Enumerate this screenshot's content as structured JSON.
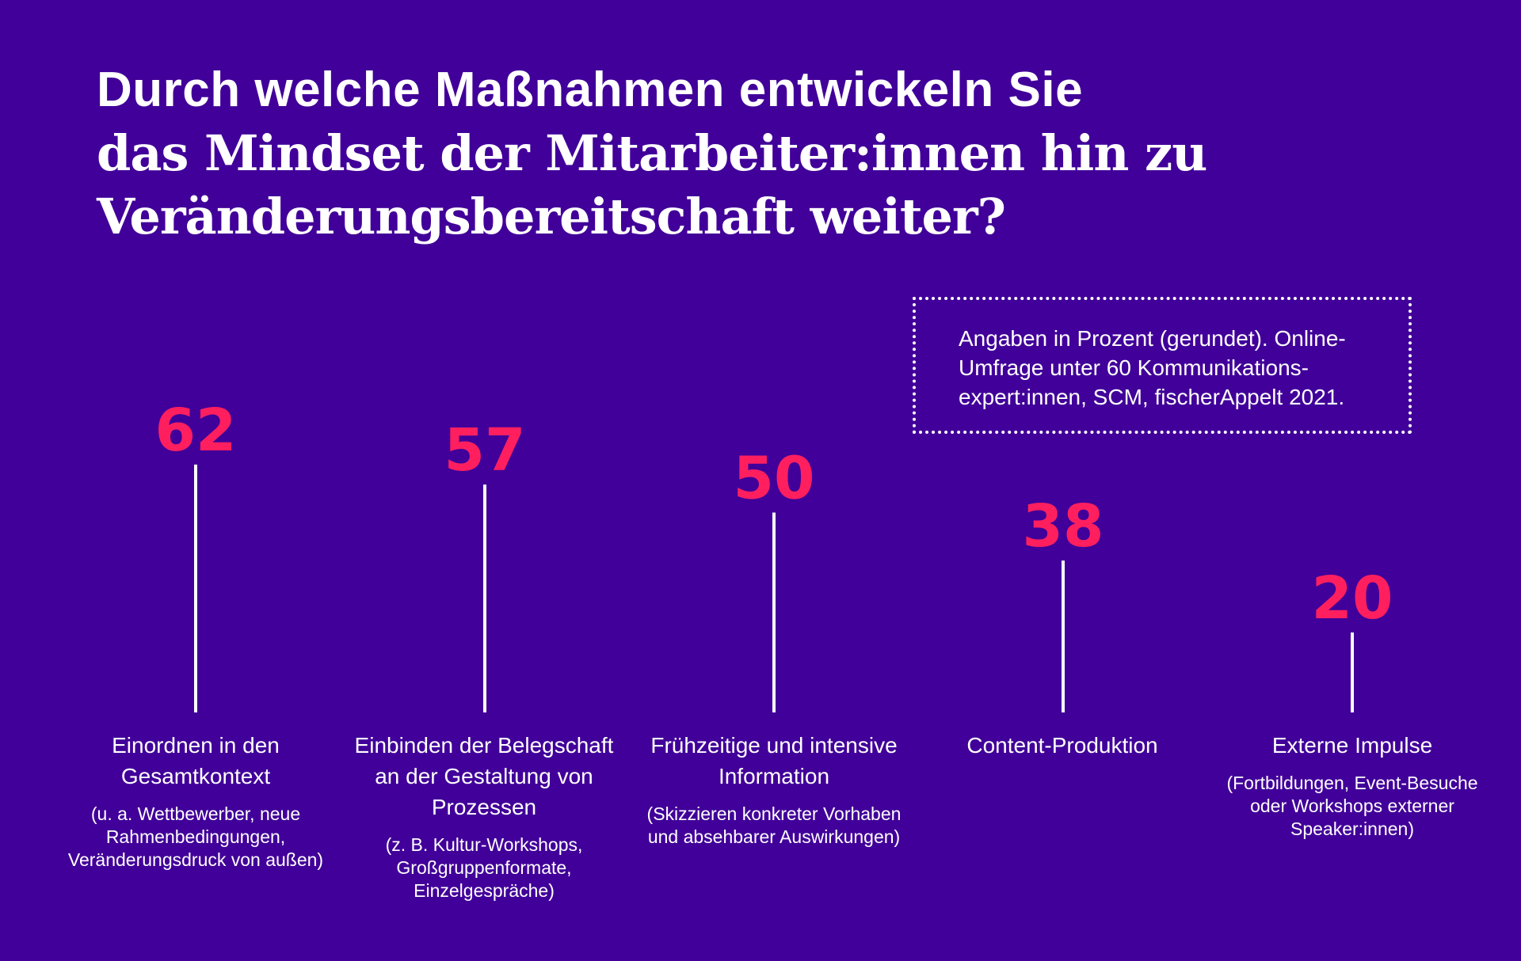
{
  "title": {
    "line1": "Durch welche Maßnahmen entwickeln Sie",
    "line2": "das Mindset der Mitarbeiter:innen hin zu",
    "line3": "Veränderungsbereitschaft weiter?"
  },
  "note": "Angaben in Prozent (gerundet). Online-Umfrage unter 60 Kommunikations-expert:innen, SCM, fischerAppelt 2021.",
  "colors": {
    "background": "#410099",
    "value": "#ff1f5f",
    "stem": "#ffffff"
  },
  "chart_data": {
    "type": "bar",
    "title": "Durch welche Maßnahmen entwickeln Sie das Mindset der Mitarbeiter:innen hin zu Veränderungsbereitschaft weiter?",
    "unit": "Prozent",
    "categories": [
      "Einordnen in den Gesamtkontext",
      "Einbinden der Belegschaft an der Gestaltung von Prozessen",
      "Frühzeitige und intensive Information",
      "Content-Produktion",
      "Externe Impulse"
    ],
    "values": [
      62,
      57,
      50,
      38,
      20
    ],
    "ylim": [
      0,
      100
    ],
    "grid": false
  },
  "categories_detail": [
    {
      "label": "Einordnen in den Gesamtkontext",
      "description": "(u. a. Wettbewerber, neue Rahmenbedingungen, Veränderungsdruck von außen)"
    },
    {
      "label": "Einbinden der Belegschaft an der Gestaltung von Prozessen",
      "description": "(z. B. Kultur-Workshops, Großgruppenformate, Einzelgespräche)"
    },
    {
      "label": "Frühzeitige und intensive Information",
      "description": "(Skizzieren konkreter Vorhaben und absehbarer Auswirkungen)"
    },
    {
      "label": "Content-Produktion",
      "description": ""
    },
    {
      "label": "Externe Impulse",
      "description": "(Fortbildungen, Event-Besuche oder Workshops externer Speaker:innen)"
    }
  ]
}
